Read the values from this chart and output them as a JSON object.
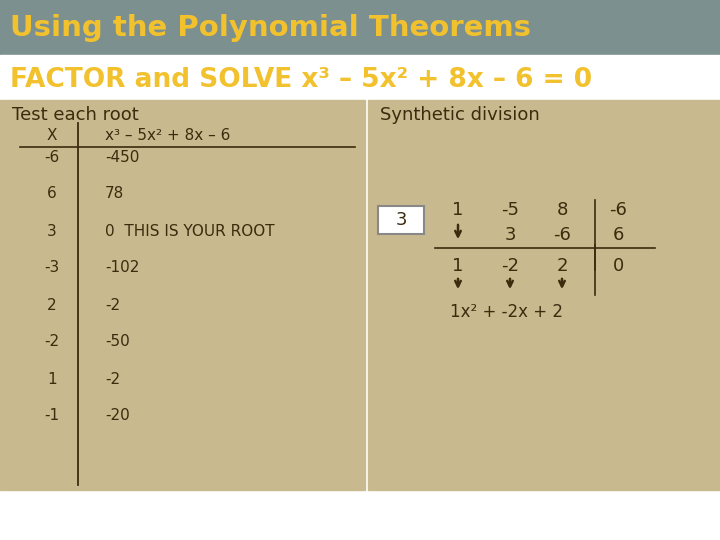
{
  "title1": "Using the Polynomial Theorems",
  "title2": "FACTOR and SOLVE x³ – 5x² + 8x – 6 = 0",
  "header_bg": "#7d9090",
  "main_bg": "#ffffff",
  "left_panel_bg": "#c9b98e",
  "right_panel_bg": "#c9b98e",
  "title1_color": "#f2c12e",
  "title2_color": "#f2c12e",
  "title1_fontsize": 21,
  "title2_fontsize": 19,
  "left_title": "Test each root",
  "right_title": "Synthetic division",
  "panel_text_color": "#3d2b0e",
  "table_header_x": "X",
  "table_header_fx": "x³ – 5x² + 8x – 6",
  "table_rows": [
    [
      "-6",
      "-450"
    ],
    [
      "6",
      "78"
    ],
    [
      "3",
      "0  THIS IS YOUR ROOT"
    ],
    [
      "-3",
      "-102"
    ],
    [
      "2",
      "-2"
    ],
    [
      "-2",
      "-50"
    ],
    [
      "1",
      "-2"
    ],
    [
      "-1",
      "-20"
    ]
  ],
  "synth_root": "3",
  "synth_top": [
    "1",
    "-5",
    "8",
    "-6"
  ],
  "synth_mid": [
    "",
    "3",
    "-6",
    "6"
  ],
  "synth_bot": [
    "1",
    "-2",
    "2",
    "0"
  ],
  "synth_result": "1x² + -2x + 2"
}
